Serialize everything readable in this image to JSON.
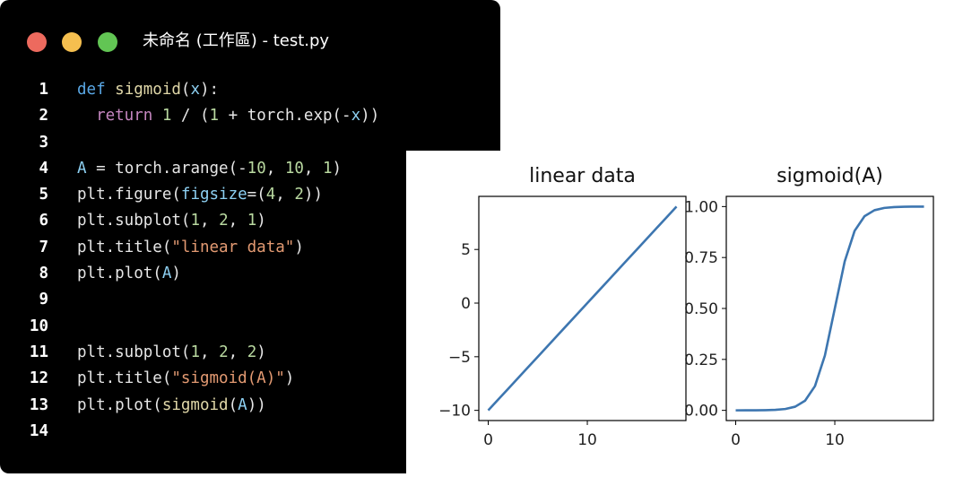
{
  "window": {
    "title": "未命名 (工作區) - test.py",
    "traffic_lights": [
      "#ed6a5e",
      "#f5bf4f",
      "#62c554"
    ]
  },
  "code_lines": [
    {
      "n": "1",
      "tokens": [
        [
          "kw",
          "def "
        ],
        [
          "fn",
          "sigmoid"
        ],
        [
          "op",
          "("
        ],
        [
          "var",
          "x"
        ],
        [
          "op",
          "):"
        ]
      ]
    },
    {
      "n": "2",
      "tokens": [
        [
          "op",
          "  "
        ],
        [
          "ret",
          "return "
        ],
        [
          "num",
          "1"
        ],
        [
          "op",
          " / ("
        ],
        [
          "num",
          "1"
        ],
        [
          "op",
          " + torch.exp(-"
        ],
        [
          "var",
          "x"
        ],
        [
          "op",
          "))"
        ]
      ]
    },
    {
      "n": "3",
      "tokens": []
    },
    {
      "n": "4",
      "tokens": [
        [
          "var",
          "A"
        ],
        [
          "op",
          " = torch.arange(-"
        ],
        [
          "num",
          "10"
        ],
        [
          "op",
          ", "
        ],
        [
          "num",
          "10"
        ],
        [
          "op",
          ", "
        ],
        [
          "num",
          "1"
        ],
        [
          "op",
          ")"
        ]
      ]
    },
    {
      "n": "5",
      "tokens": [
        [
          "op",
          "plt.figure("
        ],
        [
          "var",
          "figsize"
        ],
        [
          "op",
          "=("
        ],
        [
          "num",
          "4"
        ],
        [
          "op",
          ", "
        ],
        [
          "num",
          "2"
        ],
        [
          "op",
          "))"
        ]
      ]
    },
    {
      "n": "6",
      "tokens": [
        [
          "op",
          "plt.subplot("
        ],
        [
          "num",
          "1"
        ],
        [
          "op",
          ", "
        ],
        [
          "num",
          "2"
        ],
        [
          "op",
          ", "
        ],
        [
          "num",
          "1"
        ],
        [
          "op",
          ")"
        ]
      ]
    },
    {
      "n": "7",
      "tokens": [
        [
          "op",
          "plt.title("
        ],
        [
          "str",
          "\"linear data\""
        ],
        [
          "op",
          ")"
        ]
      ]
    },
    {
      "n": "8",
      "tokens": [
        [
          "op",
          "plt.plot("
        ],
        [
          "var",
          "A"
        ],
        [
          "op",
          ")"
        ]
      ]
    },
    {
      "n": "9",
      "tokens": []
    },
    {
      "n": "10",
      "tokens": []
    },
    {
      "n": "11",
      "tokens": [
        [
          "op",
          "plt.subplot("
        ],
        [
          "num",
          "1"
        ],
        [
          "op",
          ", "
        ],
        [
          "num",
          "2"
        ],
        [
          "op",
          ", "
        ],
        [
          "num",
          "2"
        ],
        [
          "op",
          ")"
        ]
      ]
    },
    {
      "n": "12",
      "tokens": [
        [
          "op",
          "plt.title("
        ],
        [
          "str",
          "\"sigmoid(A)\""
        ],
        [
          "op",
          ")"
        ]
      ]
    },
    {
      "n": "13",
      "tokens": [
        [
          "op",
          "plt.plot("
        ],
        [
          "fn",
          "sigmoid"
        ],
        [
          "op",
          "("
        ],
        [
          "var",
          "A"
        ],
        [
          "op",
          "))"
        ]
      ]
    },
    {
      "n": "14",
      "tokens": []
    }
  ],
  "chart_data": [
    {
      "type": "line",
      "title": "linear data",
      "x": [
        0,
        1,
        2,
        3,
        4,
        5,
        6,
        7,
        8,
        9,
        10,
        11,
        12,
        13,
        14,
        15,
        16,
        17,
        18,
        19
      ],
      "y": [
        -10,
        -9,
        -8,
        -7,
        -6,
        -5,
        -4,
        -3,
        -2,
        -1,
        0,
        1,
        2,
        3,
        4,
        5,
        6,
        7,
        8,
        9
      ],
      "xticks": [
        "0",
        "10"
      ],
      "yticks": [
        "−10",
        "−5",
        "0",
        "5"
      ],
      "xlim": [
        -0.95,
        19.95
      ],
      "ylim": [
        -10.95,
        9.95
      ],
      "color": "#3d76b0"
    },
    {
      "type": "line",
      "title": "sigmoid(A)",
      "x": [
        0,
        1,
        2,
        3,
        4,
        5,
        6,
        7,
        8,
        9,
        10,
        11,
        12,
        13,
        14,
        15,
        16,
        17,
        18,
        19
      ],
      "y": [
        5e-05,
        0.00012,
        0.00034,
        0.00091,
        0.00247,
        0.00669,
        0.01799,
        0.04743,
        0.1192,
        0.2689,
        0.5,
        0.7311,
        0.8808,
        0.9526,
        0.982,
        0.9933,
        0.9975,
        0.9991,
        0.9997,
        0.9999
      ],
      "xticks": [
        "0",
        "10"
      ],
      "yticks": [
        "0.00",
        "0.25",
        "0.50",
        "0.75",
        "1.00"
      ],
      "xlim": [
        -0.95,
        19.95
      ],
      "ylim": [
        -0.05,
        1.05
      ],
      "color": "#3d76b0"
    }
  ]
}
